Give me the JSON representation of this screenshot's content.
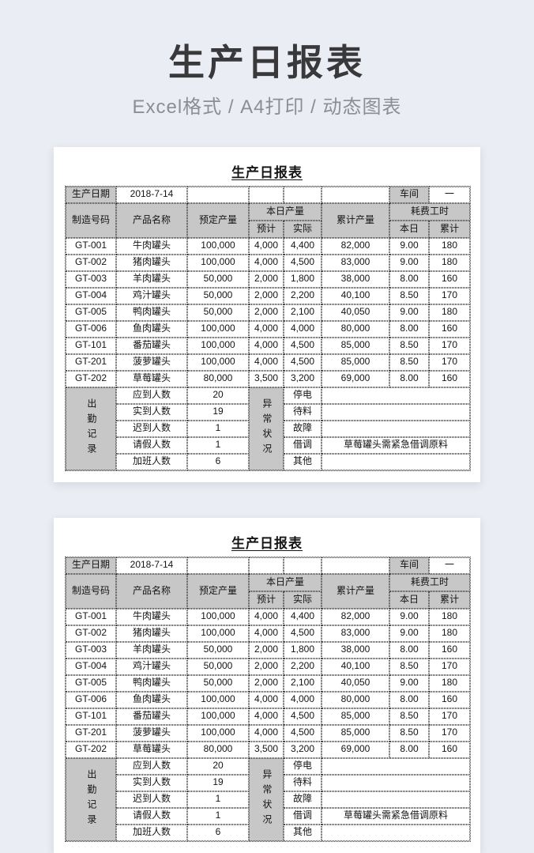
{
  "header": {
    "title": "生产日报表",
    "subtitle": "Excel格式 / A4打印 / 动态图表"
  },
  "colors": {
    "page_background": "#eaedf3",
    "card_background": "#ffffff",
    "table_header_fill": "#c7c7c7",
    "border": "#4a4a4a",
    "title_text": "#39393c",
    "subtitle_text": "#8b8e95"
  },
  "report": {
    "title": "生产日报表",
    "info": {
      "date_label": "生产日期",
      "date_value": "2018-7-14",
      "workshop_label": "车间",
      "workshop_value": "一"
    },
    "columns": {
      "id": "制造号码",
      "product": "产品名称",
      "planned": "预定产量",
      "today_group": "本日产量",
      "expected": "预计",
      "actual": "实际",
      "cumulative": "累计产量",
      "hours_group": "耗费工时",
      "today": "本日",
      "total": "累计"
    },
    "rows": [
      {
        "id": "GT-001",
        "product": "牛肉罐头",
        "planned": "100,000",
        "expected": "4,000",
        "actual": "4,400",
        "cumulative": "82,000",
        "hours_today": "9.00",
        "hours_total": "180"
      },
      {
        "id": "GT-002",
        "product": "猪肉罐头",
        "planned": "100,000",
        "expected": "4,000",
        "actual": "4,500",
        "cumulative": "83,000",
        "hours_today": "9.00",
        "hours_total": "180"
      },
      {
        "id": "GT-003",
        "product": "羊肉罐头",
        "planned": "50,000",
        "expected": "2,000",
        "actual": "1,800",
        "cumulative": "38,000",
        "hours_today": "8.00",
        "hours_total": "160"
      },
      {
        "id": "GT-004",
        "product": "鸡汁罐头",
        "planned": "50,000",
        "expected": "2,000",
        "actual": "2,200",
        "cumulative": "40,100",
        "hours_today": "8.50",
        "hours_total": "170"
      },
      {
        "id": "GT-005",
        "product": "鸭肉罐头",
        "planned": "50,000",
        "expected": "2,000",
        "actual": "2,100",
        "cumulative": "40,050",
        "hours_today": "9.00",
        "hours_total": "180"
      },
      {
        "id": "GT-006",
        "product": "鱼肉罐头",
        "planned": "100,000",
        "expected": "4,000",
        "actual": "4,000",
        "cumulative": "80,000",
        "hours_today": "8.00",
        "hours_total": "160"
      },
      {
        "id": "GT-101",
        "product": "番茄罐头",
        "planned": "100,000",
        "expected": "4,000",
        "actual": "4,500",
        "cumulative": "85,000",
        "hours_today": "8.50",
        "hours_total": "170"
      },
      {
        "id": "GT-201",
        "product": "菠萝罐头",
        "planned": "100,000",
        "expected": "4,000",
        "actual": "4,500",
        "cumulative": "85,000",
        "hours_today": "8.50",
        "hours_total": "170"
      },
      {
        "id": "GT-202",
        "product": "草莓罐头",
        "planned": "80,000",
        "expected": "3,500",
        "actual": "3,200",
        "cumulative": "69,000",
        "hours_today": "8.00",
        "hours_total": "160"
      }
    ],
    "attendance": {
      "title": "出勤记录",
      "rows": [
        {
          "label": "应到人数",
          "value": "20"
        },
        {
          "label": "实到人数",
          "value": "19"
        },
        {
          "label": "迟到人数",
          "value": "1"
        },
        {
          "label": "请假人数",
          "value": "1"
        },
        {
          "label": "加班人数",
          "value": "6"
        }
      ]
    },
    "abnormal": {
      "title": "异常状况",
      "rows": [
        {
          "label": "停电",
          "value": ""
        },
        {
          "label": "待料",
          "value": ""
        },
        {
          "label": "故障",
          "value": ""
        },
        {
          "label": "借调",
          "value": "草莓罐头需紧急借调原料"
        },
        {
          "label": "其他",
          "value": ""
        }
      ]
    }
  }
}
